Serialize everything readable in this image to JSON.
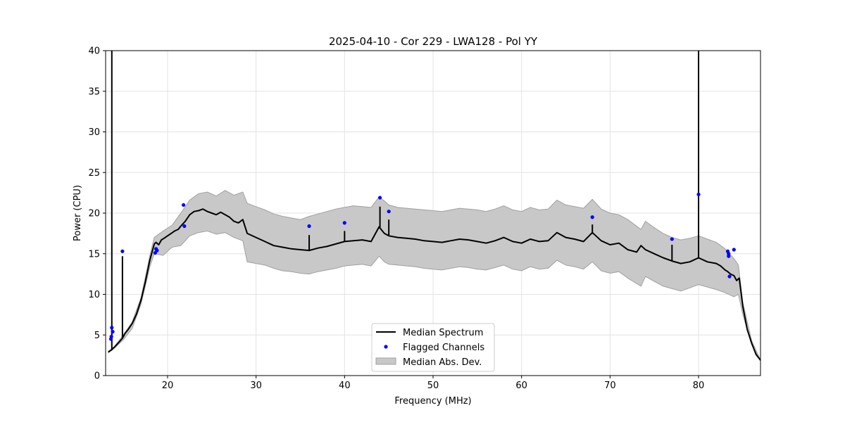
{
  "chart_data": {
    "type": "line",
    "title": "2025-04-10 - Cor 229 - LWA128 - Pol YY",
    "xlabel": "Frequency (MHz)",
    "ylabel": "Power (CPU)",
    "xlim": [
      13.0,
      87.0
    ],
    "ylim": [
      0,
      40
    ],
    "xticks": [
      20,
      30,
      40,
      50,
      60,
      70,
      80
    ],
    "yticks": [
      0,
      5,
      10,
      15,
      20,
      25,
      30,
      35,
      40
    ],
    "grid": true,
    "legend_position": "bottom-center",
    "legend": [
      "Median Spectrum",
      "Flagged Channels",
      "Median Abs. Dev."
    ],
    "colors": {
      "median": "#000000",
      "flagged": "#0000ff",
      "band": "#c8c8c8",
      "band_edge": "#a0a0a0"
    },
    "median_spectrum": {
      "x": [
        13.3,
        13.6,
        14.0,
        14.5,
        14.9,
        15.2,
        15.5,
        16.0,
        16.5,
        17.0,
        17.5,
        18.0,
        18.5,
        18.7,
        19.0,
        19.3,
        19.6,
        20.0,
        20.4,
        20.8,
        21.2,
        21.5,
        22.0,
        22.5,
        23.0,
        23.5,
        24.0,
        24.5,
        25.0,
        25.5,
        26.0,
        26.5,
        27.0,
        27.5,
        28.0,
        28.5,
        29.0,
        30.0,
        31.0,
        32.0,
        33.0,
        34.0,
        35.0,
        36.0,
        37.0,
        38.0,
        39.0,
        40.0,
        41.0,
        42.0,
        43.0,
        43.9,
        44.5,
        45.0,
        46.0,
        47.0,
        48.0,
        49.0,
        50.0,
        51.0,
        52.0,
        53.0,
        54.0,
        55.0,
        56.0,
        57.0,
        58.0,
        59.0,
        60.0,
        61.0,
        62.0,
        63.0,
        64.0,
        65.0,
        66.0,
        67.0,
        68.0,
        69.0,
        70.0,
        71.0,
        72.0,
        73.0,
        73.5,
        74.0,
        75.0,
        76.0,
        77.0,
        78.0,
        79.0,
        80.0,
        81.0,
        82.0,
        82.5,
        83.0,
        83.3,
        83.6,
        84.0,
        84.3,
        84.6,
        85.0,
        85.5,
        86.0,
        86.5,
        87.0
      ],
      "y": [
        2.9,
        3.1,
        3.5,
        4.1,
        4.6,
        5.2,
        5.6,
        6.4,
        7.6,
        9.3,
        11.6,
        14.2,
        16.2,
        16.4,
        16.1,
        16.7,
        16.9,
        17.2,
        17.5,
        17.8,
        18.0,
        18.4,
        19.0,
        19.8,
        20.2,
        20.3,
        20.5,
        20.2,
        20.0,
        19.8,
        20.1,
        19.8,
        19.5,
        19.0,
        18.8,
        19.2,
        17.5,
        17.0,
        16.5,
        16.0,
        15.8,
        15.6,
        15.5,
        15.4,
        15.7,
        15.9,
        16.2,
        16.5,
        16.6,
        16.7,
        16.5,
        18.3,
        17.5,
        17.2,
        17.0,
        16.9,
        16.8,
        16.6,
        16.5,
        16.4,
        16.6,
        16.8,
        16.7,
        16.5,
        16.3,
        16.6,
        17.0,
        16.5,
        16.3,
        16.8,
        16.5,
        16.6,
        17.6,
        17.0,
        16.8,
        16.5,
        17.6,
        16.6,
        16.1,
        16.3,
        15.5,
        15.2,
        16.0,
        15.5,
        15.0,
        14.5,
        14.1,
        13.8,
        14.0,
        14.5,
        14.0,
        13.8,
        13.5,
        13.0,
        12.8,
        12.5,
        12.3,
        11.7,
        12.0,
        8.5,
        5.7,
        4.0,
        2.6,
        1.9
      ]
    },
    "median_abs_dev": {
      "x": [
        13.3,
        14.0,
        15.0,
        16.0,
        17.0,
        18.0,
        18.5,
        19.5,
        20.5,
        21.5,
        22.5,
        23.5,
        24.5,
        25.5,
        26.5,
        27.5,
        28.5,
        29.0,
        30.0,
        31.0,
        32.0,
        33.0,
        34.0,
        35.0,
        36.0,
        37.0,
        38.0,
        39.0,
        40.0,
        41.0,
        42.0,
        43.0,
        43.9,
        44.5,
        45.0,
        46.0,
        47.0,
        48.0,
        49.0,
        50.0,
        51.0,
        52.0,
        53.0,
        54.0,
        55.0,
        56.0,
        57.0,
        58.0,
        59.0,
        60.0,
        61.0,
        62.0,
        63.0,
        64.0,
        65.0,
        66.0,
        67.0,
        68.0,
        69.0,
        70.0,
        71.0,
        72.0,
        73.5,
        74.0,
        75.0,
        76.0,
        77.0,
        78.0,
        79.0,
        80.0,
        81.0,
        82.0,
        83.0,
        84.0,
        84.5,
        85.0,
        86.0,
        87.0
      ],
      "upper": [
        3.0,
        3.6,
        5.0,
        6.6,
        9.6,
        14.8,
        17.0,
        17.8,
        18.5,
        20.0,
        21.6,
        22.4,
        22.6,
        22.1,
        22.8,
        22.2,
        22.6,
        21.2,
        20.8,
        20.4,
        19.9,
        19.6,
        19.4,
        19.2,
        19.6,
        19.9,
        20.2,
        20.5,
        20.7,
        20.9,
        20.8,
        20.7,
        22.0,
        21.5,
        21.0,
        20.7,
        20.6,
        20.5,
        20.4,
        20.3,
        20.2,
        20.4,
        20.6,
        20.5,
        20.4,
        20.2,
        20.5,
        20.9,
        20.4,
        20.2,
        20.7,
        20.4,
        20.5,
        21.6,
        21.0,
        20.8,
        20.6,
        21.7,
        20.5,
        20.0,
        19.8,
        19.2,
        18.0,
        19.0,
        18.2,
        17.5,
        17.0,
        16.7,
        16.9,
        17.2,
        16.8,
        16.4,
        15.6,
        14.4,
        13.6,
        9.0,
        4.3,
        1.9
      ],
      "lower": [
        2.8,
        3.4,
        4.4,
        5.8,
        8.8,
        13.4,
        15.0,
        14.8,
        15.8,
        16.0,
        17.2,
        17.6,
        17.8,
        17.4,
        17.6,
        17.0,
        16.6,
        14.0,
        13.8,
        13.6,
        13.2,
        12.9,
        12.8,
        12.6,
        12.5,
        12.8,
        13.0,
        13.2,
        13.5,
        13.6,
        13.7,
        13.5,
        14.7,
        14.0,
        13.7,
        13.6,
        13.5,
        13.4,
        13.2,
        13.1,
        13.0,
        13.2,
        13.4,
        13.3,
        13.1,
        13.0,
        13.3,
        13.6,
        13.1,
        12.9,
        13.4,
        13.1,
        13.2,
        14.2,
        13.6,
        13.4,
        13.1,
        14.0,
        12.9,
        12.6,
        12.8,
        12.0,
        11.0,
        12.2,
        11.6,
        11.0,
        10.7,
        10.4,
        10.8,
        11.2,
        10.9,
        10.6,
        10.2,
        9.7,
        10.0,
        7.5,
        3.8,
        1.8
      ]
    },
    "spikes": [
      {
        "x": 13.7,
        "y": 40
      },
      {
        "x": 14.9,
        "y": 14.7
      },
      {
        "x": 36.0,
        "y": 17.3
      },
      {
        "x": 40.0,
        "y": 17.8
      },
      {
        "x": 44.0,
        "y": 20.8
      },
      {
        "x": 45.0,
        "y": 19.2
      },
      {
        "x": 68.0,
        "y": 18.6
      },
      {
        "x": 77.0,
        "y": 16.1
      },
      {
        "x": 80.0,
        "y": 40
      }
    ],
    "flagged_channels": {
      "x": [
        13.6,
        13.7,
        13.8,
        13.65,
        14.9,
        18.6,
        18.8,
        18.7,
        21.8,
        21.9,
        36.0,
        40.0,
        44.0,
        45.0,
        68.0,
        77.0,
        80.0,
        83.3,
        83.4,
        83.4,
        83.5,
        84.0
      ],
      "y": [
        4.5,
        5.9,
        5.4,
        4.8,
        15.3,
        15.1,
        15.4,
        15.6,
        21.0,
        18.4,
        18.4,
        18.8,
        21.9,
        20.2,
        19.5,
        16.8,
        22.3,
        15.3,
        15.0,
        14.7,
        12.2,
        15.5
      ]
    }
  }
}
